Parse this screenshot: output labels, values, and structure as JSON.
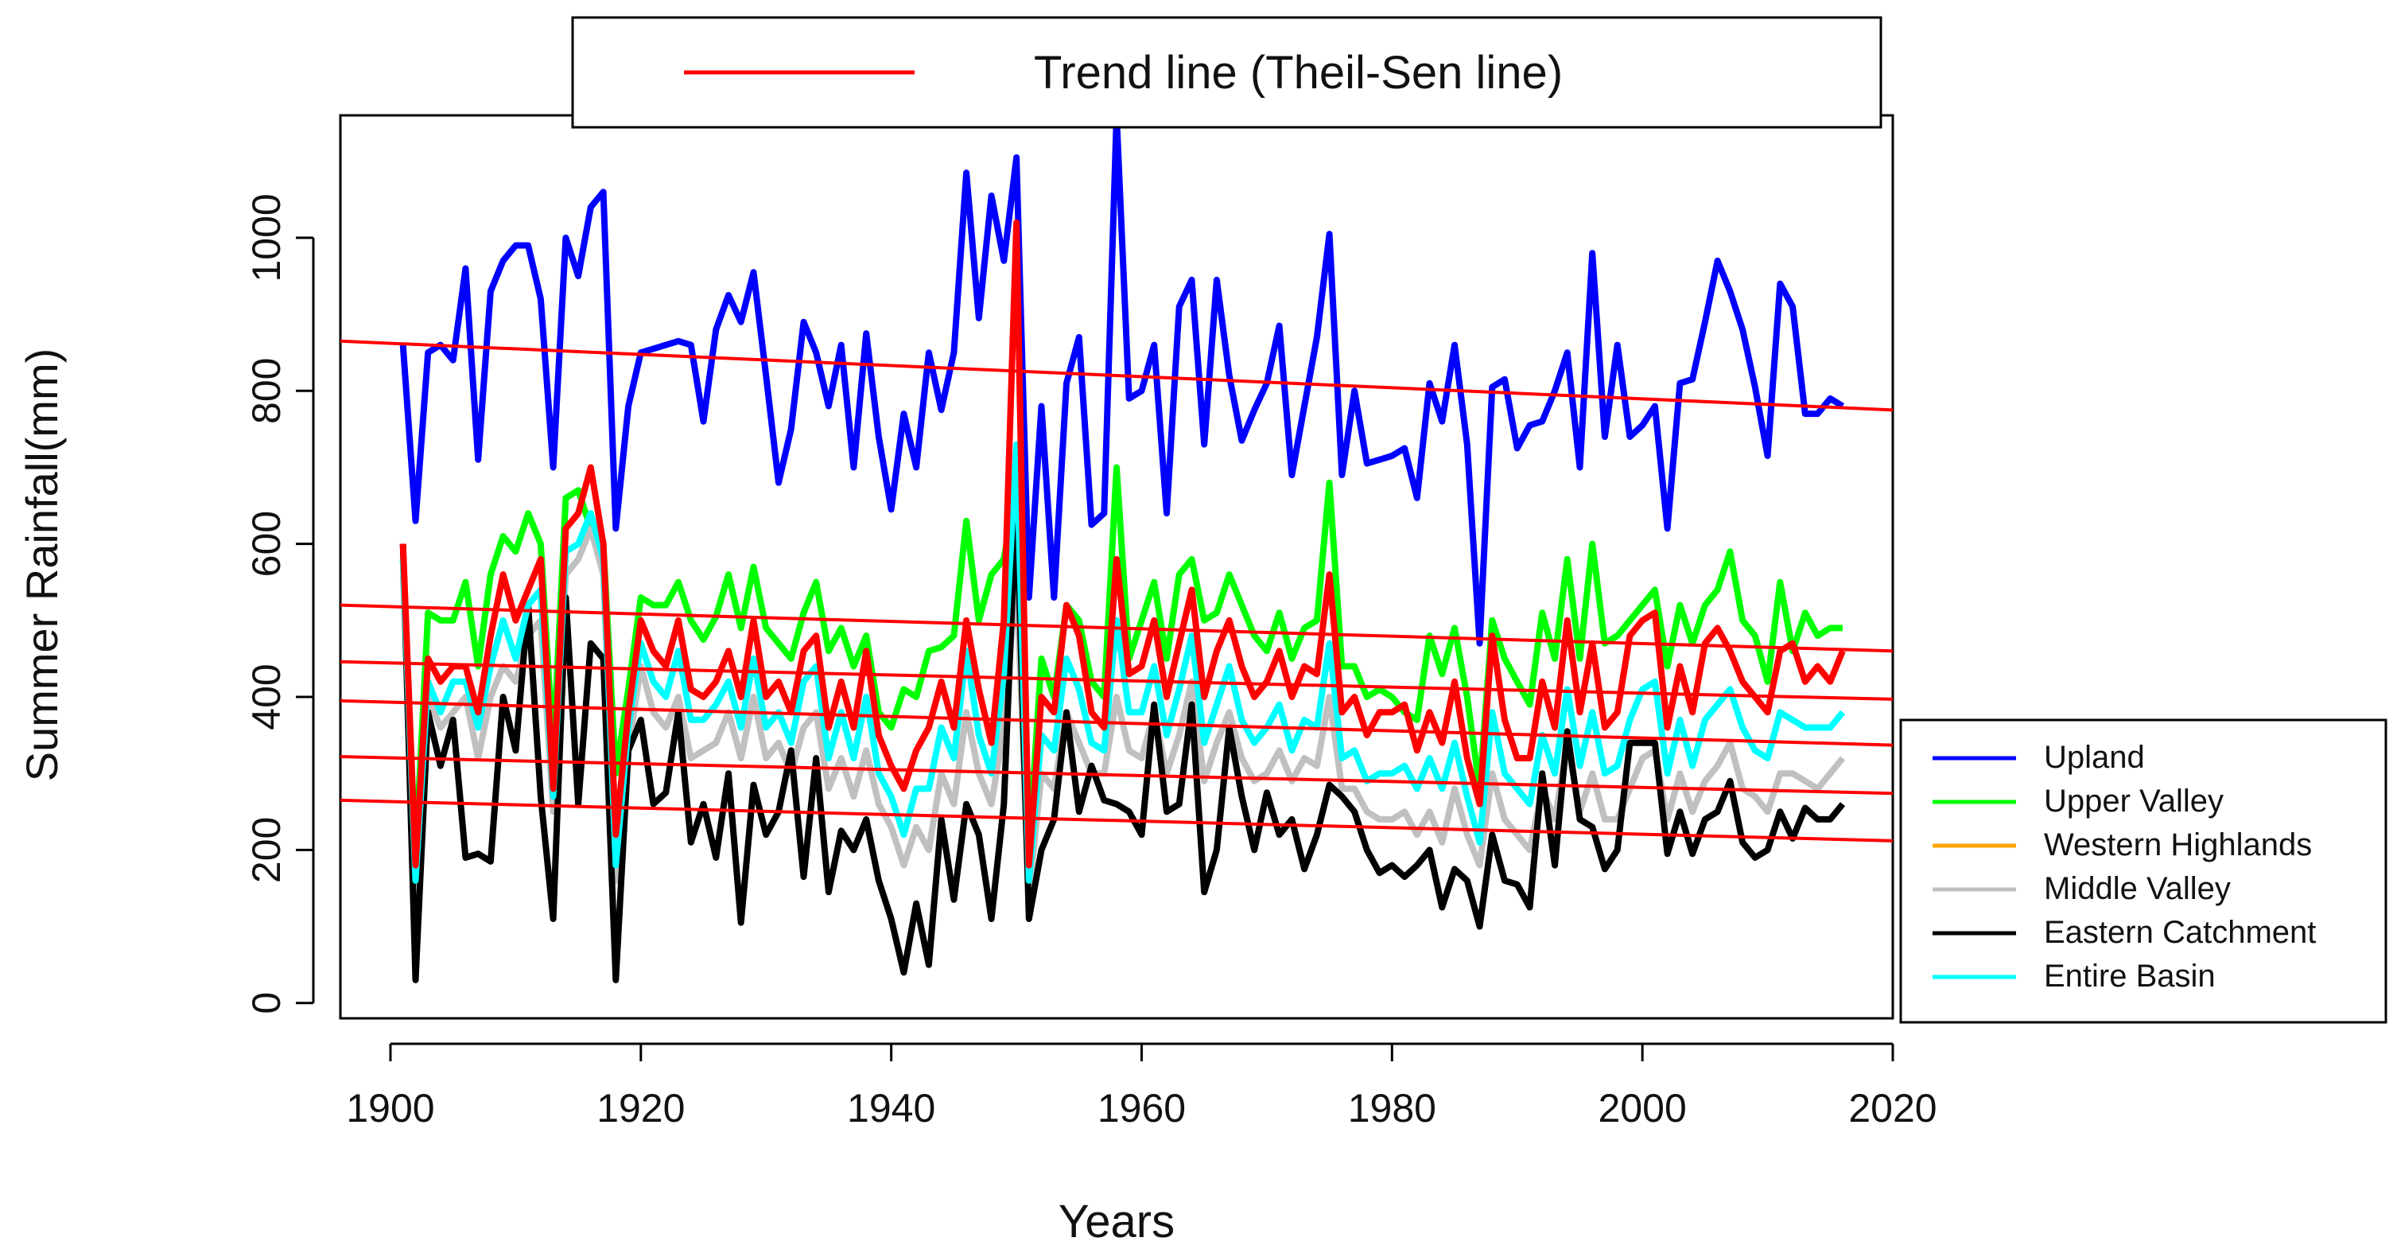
{
  "chart_data": {
    "type": "line",
    "xlabel": "Years",
    "ylabel": "Summer Rainfall(mm)",
    "xlim": [
      1896,
      2020
    ],
    "ylim": [
      -20,
      1160
    ],
    "x_ticks": [
      1900,
      1920,
      1940,
      1960,
      1980,
      2000,
      2020
    ],
    "y_ticks": [
      0,
      200,
      400,
      600,
      800,
      1000
    ],
    "trend_legend_label": "Trend line (Theil-Sen line)",
    "trend_color": "#ff0000",
    "trend_lines": [
      {
        "name": "Upland trend",
        "x": [
          1896,
          2020
        ],
        "y": [
          865,
          775
        ]
      },
      {
        "name": "Upper Valley trend",
        "x": [
          1896,
          2020
        ],
        "y": [
          520,
          460
        ]
      },
      {
        "name": "Western Highlands trend",
        "x": [
          1896,
          2020
        ],
        "y": [
          446,
          397
        ]
      },
      {
        "name": "Entire Basin trend",
        "x": [
          1896,
          2020
        ],
        "y": [
          395,
          337
        ]
      },
      {
        "name": "Middle Valley trend",
        "x": [
          1896,
          2020
        ],
        "y": [
          322,
          274
        ]
      },
      {
        "name": "Eastern Catchment trend",
        "x": [
          1896,
          2020
        ],
        "y": [
          265,
          212
        ]
      }
    ],
    "x": [
      1901,
      1902,
      1903,
      1904,
      1905,
      1906,
      1907,
      1908,
      1909,
      1910,
      1911,
      1912,
      1913,
      1914,
      1915,
      1916,
      1917,
      1918,
      1919,
      1920,
      1921,
      1922,
      1923,
      1924,
      1925,
      1926,
      1927,
      1928,
      1929,
      1930,
      1931,
      1932,
      1933,
      1934,
      1935,
      1936,
      1937,
      1938,
      1939,
      1940,
      1941,
      1942,
      1943,
      1944,
      1945,
      1946,
      1947,
      1948,
      1949,
      1950,
      1951,
      1952,
      1953,
      1954,
      1955,
      1956,
      1957,
      1958,
      1959,
      1960,
      1961,
      1962,
      1963,
      1964,
      1965,
      1966,
      1967,
      1968,
      1969,
      1970,
      1971,
      1972,
      1973,
      1974,
      1975,
      1976,
      1977,
      1978,
      1979,
      1980,
      1981,
      1982,
      1983,
      1984,
      1985,
      1986,
      1987,
      1988,
      1989,
      1990,
      1991,
      1992,
      1993,
      1994,
      1995,
      1996,
      1997,
      1998,
      1999,
      2000,
      2001,
      2002,
      2003,
      2004,
      2005,
      2006,
      2007,
      2008,
      2009,
      2010,
      2011,
      2012,
      2013,
      2014,
      2015,
      2016
    ],
    "series": [
      {
        "name": "Upland",
        "color": "#0000ff",
        "values": [
          860,
          630,
          850,
          860,
          840,
          960,
          710,
          930,
          970,
          990,
          990,
          920,
          700,
          1000,
          950,
          1040,
          1060,
          620,
          780,
          850,
          855,
          860,
          865,
          860,
          760,
          880,
          925,
          890,
          955,
          820,
          680,
          750,
          890,
          850,
          780,
          860,
          700,
          875,
          740,
          645,
          770,
          700,
          850,
          775,
          850,
          1085,
          895,
          1055,
          970,
          1105,
          530,
          780,
          530,
          810,
          870,
          625,
          640,
          1160,
          790,
          800,
          860,
          640,
          910,
          945,
          730,
          945,
          820,
          735,
          775,
          810,
          885,
          690,
          780,
          870,
          1005,
          690,
          800,
          705,
          710,
          715,
          725,
          660,
          810,
          760,
          860,
          730,
          470,
          805,
          815,
          725,
          755,
          760,
          800,
          850,
          700,
          980,
          740,
          860,
          740,
          755,
          780,
          620,
          810,
          815,
          890,
          970,
          930,
          880,
          805,
          715,
          940,
          910,
          770,
          770,
          790,
          780
        ]
      },
      {
        "name": "Upper Valley",
        "color": "#00ff00",
        "values": [
          580,
          190,
          510,
          500,
          500,
          550,
          440,
          560,
          610,
          590,
          640,
          600,
          330,
          660,
          670,
          620,
          600,
          300,
          410,
          530,
          520,
          520,
          550,
          500,
          475,
          505,
          560,
          490,
          570,
          490,
          470,
          450,
          510,
          550,
          460,
          490,
          440,
          480,
          380,
          360,
          410,
          400,
          460,
          465,
          480,
          630,
          500,
          560,
          580,
          680,
          200,
          450,
          400,
          520,
          500,
          420,
          400,
          700,
          450,
          500,
          550,
          450,
          560,
          580,
          500,
          510,
          560,
          520,
          480,
          460,
          510,
          450,
          490,
          500,
          680,
          440,
          440,
          400,
          410,
          400,
          380,
          370,
          480,
          430,
          490,
          400,
          280,
          500,
          450,
          420,
          390,
          510,
          450,
          580,
          450,
          600,
          470,
          480,
          500,
          520,
          540,
          440,
          520,
          470,
          520,
          540,
          590,
          500,
          480,
          420,
          550,
          460,
          510,
          480,
          490,
          490
        ]
      },
      {
        "name": "Western Highlands",
        "color": "#ffa500",
        "values": [
          600,
          180,
          450,
          420,
          440,
          440,
          380,
          480,
          560,
          500,
          540,
          580,
          280,
          620,
          640,
          700,
          600,
          220,
          380,
          500,
          460,
          440,
          500,
          410,
          400,
          420,
          460,
          400,
          500,
          400,
          420,
          380,
          460,
          480,
          360,
          420,
          360,
          460,
          350,
          310,
          280,
          330,
          360,
          420,
          360,
          500,
          410,
          340,
          500,
          1020,
          180,
          400,
          380,
          520,
          480,
          380,
          360,
          580,
          430,
          440,
          500,
          400,
          470,
          540,
          400,
          460,
          500,
          440,
          400,
          420,
          460,
          400,
          440,
          430,
          560,
          380,
          400,
          350,
          380,
          380,
          390,
          330,
          380,
          340,
          420,
          320,
          260,
          480,
          370,
          320,
          320,
          420,
          360,
          500,
          380,
          470,
          360,
          380,
          480,
          500,
          510,
          360,
          440,
          380,
          470,
          490,
          460,
          420,
          400,
          380,
          460,
          470,
          420,
          440,
          420,
          460
        ]
      },
      {
        "name": "Middle Valley",
        "color": "#c0c0c0",
        "values": [
          560,
          150,
          400,
          360,
          380,
          400,
          320,
          400,
          440,
          420,
          480,
          500,
          250,
          560,
          580,
          620,
          560,
          160,
          330,
          440,
          380,
          360,
          400,
          320,
          330,
          340,
          380,
          320,
          400,
          320,
          340,
          300,
          360,
          380,
          280,
          320,
          270,
          330,
          260,
          230,
          180,
          230,
          200,
          300,
          260,
          380,
          300,
          260,
          360,
          560,
          140,
          300,
          280,
          380,
          340,
          300,
          300,
          400,
          330,
          320,
          380,
          300,
          350,
          420,
          290,
          340,
          380,
          320,
          290,
          300,
          330,
          290,
          320,
          310,
          400,
          280,
          280,
          250,
          240,
          240,
          250,
          220,
          250,
          210,
          280,
          220,
          180,
          300,
          240,
          220,
          200,
          280,
          240,
          340,
          250,
          300,
          240,
          240,
          280,
          320,
          330,
          240,
          300,
          250,
          290,
          310,
          340,
          280,
          270,
          250,
          300,
          300,
          290,
          280,
          300,
          320
        ]
      },
      {
        "name": "Eastern Catchment",
        "color": "#000000",
        "values": [
          600,
          30,
          380,
          310,
          370,
          190,
          195,
          185,
          400,
          330,
          520,
          270,
          110,
          530,
          260,
          470,
          450,
          30,
          330,
          370,
          260,
          275,
          380,
          210,
          260,
          190,
          300,
          105,
          285,
          220,
          250,
          330,
          165,
          320,
          145,
          225,
          200,
          240,
          160,
          110,
          40,
          130,
          50,
          240,
          135,
          260,
          220,
          110,
          260,
          660,
          110,
          200,
          240,
          380,
          250,
          310,
          265,
          260,
          250,
          220,
          390,
          250,
          260,
          390,
          145,
          200,
          360,
          270,
          200,
          275,
          220,
          240,
          175,
          220,
          285,
          270,
          250,
          200,
          170,
          180,
          165,
          180,
          200,
          125,
          175,
          160,
          100,
          220,
          160,
          155,
          125,
          300,
          180,
          355,
          240,
          230,
          175,
          200,
          340,
          340,
          340,
          195,
          250,
          195,
          240,
          250,
          290,
          210,
          190,
          200,
          250,
          215,
          255,
          240,
          240,
          260
        ]
      },
      {
        "name": "Entire Basin",
        "color": "#00ffff",
        "values": [
          580,
          160,
          420,
          380,
          420,
          420,
          360,
          440,
          500,
          450,
          520,
          540,
          270,
          590,
          600,
          640,
          580,
          180,
          360,
          470,
          420,
          400,
          460,
          370,
          370,
          390,
          420,
          360,
          450,
          360,
          380,
          340,
          420,
          440,
          320,
          380,
          320,
          400,
          300,
          270,
          220,
          280,
          280,
          360,
          320,
          460,
          350,
          300,
          430,
          730,
          160,
          350,
          330,
          450,
          410,
          340,
          330,
          500,
          380,
          380,
          440,
          350,
          410,
          480,
          340,
          390,
          440,
          370,
          340,
          360,
          390,
          330,
          370,
          360,
          470,
          320,
          330,
          290,
          300,
          300,
          310,
          280,
          320,
          280,
          340,
          270,
          210,
          380,
          300,
          280,
          260,
          350,
          300,
          410,
          310,
          380,
          300,
          310,
          370,
          410,
          420,
          300,
          370,
          310,
          370,
          390,
          410,
          360,
          330,
          320,
          380,
          370,
          360,
          360,
          360,
          380
        ]
      }
    ]
  }
}
